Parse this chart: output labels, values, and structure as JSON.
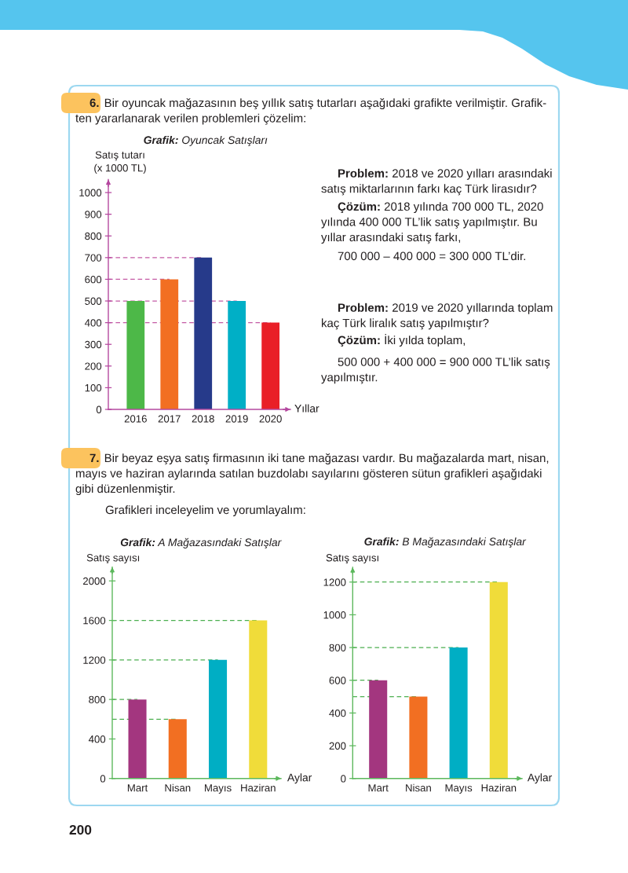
{
  "chart_data": [
    {
      "type": "bar",
      "title": "Grafik: Oyuncak Satışları",
      "ylabel": "Satış tutarı\n(x 1000 TL)",
      "xlabel": "Yıllar",
      "categories": [
        "2016",
        "2017",
        "2018",
        "2019",
        "2020"
      ],
      "values": [
        500,
        600,
        700,
        500,
        400
      ],
      "colors": [
        "#4db848",
        "#f26f22",
        "#263a8a",
        "#00afc6",
        "#e91f27"
      ],
      "ylim": [
        0,
        1060
      ],
      "yticks": [
        0,
        100,
        200,
        300,
        400,
        500,
        600,
        700,
        800,
        900,
        1000
      ],
      "ref_lines": [
        {
          "axis": "y",
          "value": 700,
          "color": "#c45aa5",
          "line_style": "dashed"
        },
        {
          "axis": "y",
          "value": 600,
          "color": "#c45aa5",
          "line_style": "dashed"
        },
        {
          "axis": "y",
          "value": 500,
          "color": "#c45aa5",
          "line_style": "dashed"
        },
        {
          "axis": "y",
          "value": 400,
          "color": "#c45aa5",
          "line_style": "dashed"
        }
      ],
      "annotations": [
        "6. Bir oyuncak mağazasının beş yıllık satış tutarları aşağıdaki grafikte verilmiştir. Grafik-\nten yararlanarak verilen problemleri çözelim:",
        "Problem: 2018 ve 2020 yılları arasındaki\nsatış miktarlarının farkı kaç Türk lirasıdır?",
        "Çözüm: 2018 yılında 700 000 TL, 2020\nyılında 400 000 TL’lik satış yapılmıştır. Bu\nyıllar arasındaki satış farkı,",
        "700 000 – 400 000 = 300 000 TL’dir.",
        "Problem: 2019 ve 2020 yıllarında toplam\nkaç Türk liralık satış yapılmıştır?",
        "Çözüm: İki yılda toplam,",
        "500 000 + 400 000 = 900 000 TL’lik satış\nyapılmıştır."
      ]
    },
    {
      "type": "bar",
      "title": "Grafik: A Mağazasındaki Satışlar",
      "ylabel": "Satış sayısı",
      "xlabel": "Aylar",
      "categories": [
        "Mart",
        "Nisan",
        "Mayıs",
        "Haziran"
      ],
      "values": [
        800,
        600,
        1200,
        1600
      ],
      "colors": [
        "#a3367f",
        "#f26f22",
        "#00aec4",
        "#f0dc3a"
      ],
      "ylim": [
        0,
        2140
      ],
      "yticks": [
        0,
        400,
        800,
        1200,
        1600,
        2000
      ],
      "ref_lines": [
        {
          "axis": "y",
          "value": 1600,
          "color": "#4caf50",
          "line_style": "dashed"
        },
        {
          "axis": "y",
          "value": 1200,
          "color": "#4caf50",
          "line_style": "dashed"
        },
        {
          "axis": "y",
          "value": 800,
          "color": "#4caf50",
          "line_style": "dashed"
        },
        {
          "axis": "y",
          "value": 600,
          "color": "#4caf50",
          "line_style": "dashed"
        }
      ],
      "annotations": [
        "7. Bir beyaz eşya satış firmasının iki tane mağazası vardır. Bu mağazalarda mart, nisan,\nmayıs ve haziran aylarında satılan buzdolabı sayılarını gösteren sütun grafikleri aşağıdaki\ngibi düzenlenmiştir.",
        "Grafikleri inceleyelim ve yorumlayalım:"
      ]
    },
    {
      "type": "bar",
      "title": "Grafik: B Mağazasındaki Satışlar",
      "ylabel": "Satış sayısı",
      "xlabel": "Aylar",
      "categories": [
        "Mart",
        "Nisan",
        "Mayıs",
        "Haziran"
      ],
      "values": [
        600,
        500,
        800,
        1200
      ],
      "colors": [
        "#a3367f",
        "#f26f22",
        "#00aec4",
        "#f0dc3a"
      ],
      "ylim": [
        0,
        1290
      ],
      "yticks": [
        0,
        200,
        400,
        600,
        800,
        1000,
        1200
      ],
      "ref_lines": [
        {
          "axis": "y",
          "value": 1200,
          "color": "#4caf50",
          "line_style": "dashed"
        },
        {
          "axis": "y",
          "value": 800,
          "color": "#4caf50",
          "line_style": "dashed"
        },
        {
          "axis": "y",
          "value": 600,
          "color": "#4caf50",
          "line_style": "dashed"
        },
        {
          "axis": "y",
          "value": 500,
          "color": "#4caf50",
          "line_style": "dashed"
        }
      ],
      "annotations": [
        "200"
      ]
    }
  ]
}
